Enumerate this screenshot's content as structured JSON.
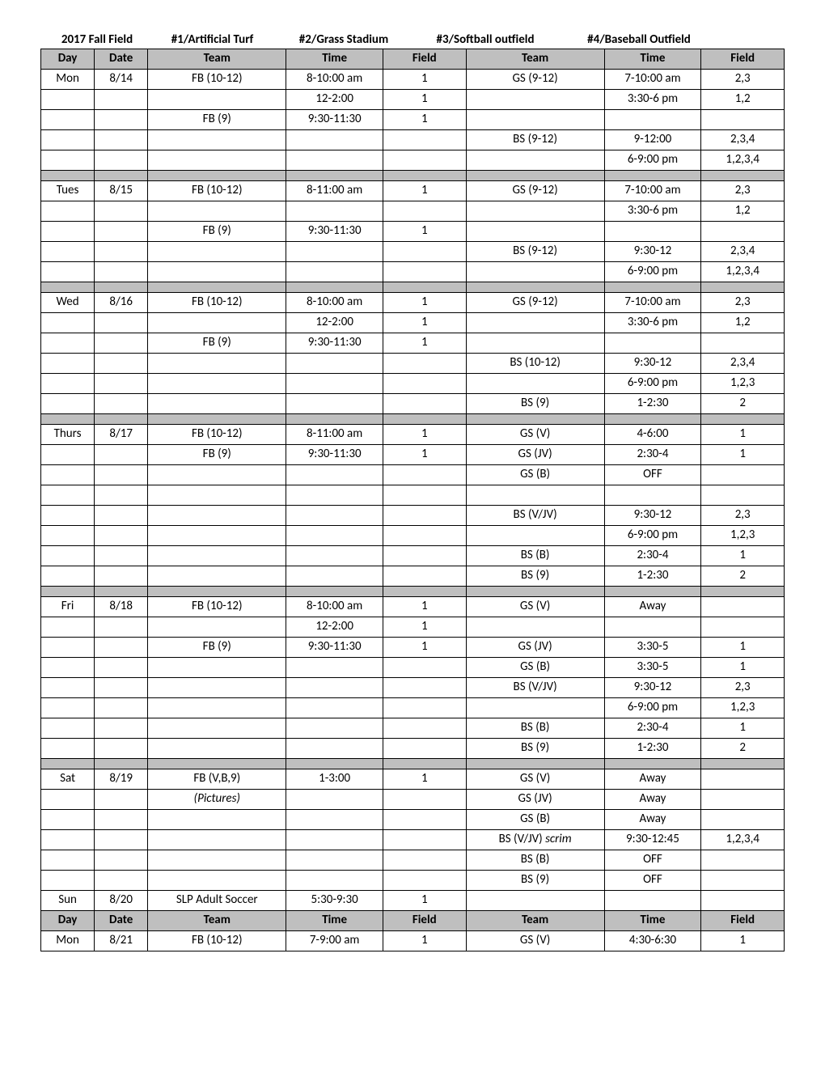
{
  "title": {
    "label1": "2017 Fall Field",
    "label2": "#1/Artificial Turf",
    "label3": "#2/Grass Stadium",
    "label4": "#3/Softball outfield",
    "label5": "#4/Baseball Outfield"
  },
  "headers": {
    "day": "Day",
    "date": "Date",
    "team": "Team",
    "time": "Time",
    "field": "Field"
  },
  "table": {
    "background_gray": "#bfbfbf",
    "border_color": "#000000",
    "font_family": "Calibri",
    "font_size": 15
  },
  "rows": [
    {
      "type": "header"
    },
    {
      "type": "data",
      "cells": [
        "Mon",
        "8/14",
        "FB (10-12)",
        "8-10:00 am",
        "1",
        "GS (9-12)",
        "7-10:00 am",
        "2,3"
      ]
    },
    {
      "type": "data",
      "cells": [
        "",
        "",
        "",
        "12-2:00",
        "1",
        "",
        "3:30-6 pm",
        "1,2"
      ]
    },
    {
      "type": "data",
      "cells": [
        "",
        "",
        "FB (9)",
        "9:30-11:30",
        "1",
        "",
        "",
        ""
      ]
    },
    {
      "type": "data",
      "cells": [
        "",
        "",
        "",
        "",
        "",
        "BS (9-12)",
        "9-12:00",
        "2,3,4"
      ]
    },
    {
      "type": "data",
      "cells": [
        "",
        "",
        "",
        "",
        "",
        "",
        "6-9:00 pm",
        "1,2,3,4"
      ]
    },
    {
      "type": "sep"
    },
    {
      "type": "data",
      "cells": [
        "Tues",
        "8/15",
        "FB (10-12)",
        "8-11:00 am",
        "1",
        "GS (9-12)",
        "7-10:00 am",
        "2,3"
      ]
    },
    {
      "type": "data",
      "cells": [
        "",
        "",
        "",
        "",
        "",
        "",
        "3:30-6 pm",
        "1,2"
      ]
    },
    {
      "type": "data",
      "cells": [
        "",
        "",
        "FB (9)",
        "9:30-11:30",
        "1",
        "",
        "",
        ""
      ]
    },
    {
      "type": "data",
      "cells": [
        "",
        "",
        "",
        "",
        "",
        "BS (9-12)",
        "9:30-12",
        "2,3,4"
      ]
    },
    {
      "type": "data",
      "cells": [
        "",
        "",
        "",
        "",
        "",
        "",
        "6-9:00 pm",
        "1,2,3,4"
      ]
    },
    {
      "type": "sep"
    },
    {
      "type": "data",
      "cells": [
        "Wed",
        "8/16",
        "FB (10-12)",
        "8-10:00 am",
        "1",
        "GS (9-12)",
        "7-10:00 am",
        "2,3"
      ]
    },
    {
      "type": "data",
      "cells": [
        "",
        "",
        "",
        "12-2:00",
        "1",
        "",
        "3:30-6 pm",
        "1,2"
      ]
    },
    {
      "type": "data",
      "cells": [
        "",
        "",
        "FB (9)",
        "9:30-11:30",
        "1",
        "",
        "",
        ""
      ]
    },
    {
      "type": "data",
      "cells": [
        "",
        "",
        "",
        "",
        "",
        "BS (10-12)",
        "9:30-12",
        "2,3,4"
      ]
    },
    {
      "type": "data",
      "cells": [
        "",
        "",
        "",
        "",
        "",
        "",
        "6-9:00 pm",
        "1,2,3"
      ]
    },
    {
      "type": "data",
      "cells": [
        "",
        "",
        "",
        "",
        "",
        "BS (9)",
        "1-2:30",
        "2"
      ]
    },
    {
      "type": "sep"
    },
    {
      "type": "data",
      "cells": [
        "Thurs",
        "8/17",
        "FB (10-12)",
        "8-11:00 am",
        "1",
        "GS (V)",
        "4-6:00",
        "1"
      ]
    },
    {
      "type": "data",
      "cells": [
        "",
        "",
        "FB (9)",
        "9:30-11:30",
        "1",
        "GS (JV)",
        "2:30-4",
        "1"
      ]
    },
    {
      "type": "data",
      "cells": [
        "",
        "",
        "",
        "",
        "",
        "GS (B)",
        "OFF",
        ""
      ]
    },
    {
      "type": "data",
      "cells": [
        "",
        "",
        "",
        "",
        "",
        "",
        "",
        ""
      ]
    },
    {
      "type": "data",
      "cells": [
        "",
        "",
        "",
        "",
        "",
        "BS (V/JV)",
        "9:30-12",
        "2,3"
      ]
    },
    {
      "type": "data",
      "cells": [
        "",
        "",
        "",
        "",
        "",
        "",
        "6-9:00 pm",
        "1,2,3"
      ]
    },
    {
      "type": "data",
      "cells": [
        "",
        "",
        "",
        "",
        "",
        "BS (B)",
        "2:30-4",
        "1"
      ]
    },
    {
      "type": "data",
      "cells": [
        "",
        "",
        "",
        "",
        "",
        "BS (9)",
        "1-2:30",
        "2"
      ]
    },
    {
      "type": "sep"
    },
    {
      "type": "data",
      "cells": [
        "Fri",
        "8/18",
        "FB (10-12)",
        "8-10:00 am",
        "1",
        "GS (V)",
        "Away",
        ""
      ]
    },
    {
      "type": "data",
      "cells": [
        "",
        "",
        "",
        "12-2:00",
        "1",
        "",
        "",
        ""
      ]
    },
    {
      "type": "data",
      "cells": [
        "",
        "",
        "FB (9)",
        "9:30-11:30",
        "1",
        "GS (JV)",
        "3:30-5",
        "1"
      ]
    },
    {
      "type": "data",
      "cells": [
        "",
        "",
        "",
        "",
        "",
        "GS (B)",
        "3:30-5",
        "1"
      ]
    },
    {
      "type": "data",
      "cells": [
        "",
        "",
        "",
        "",
        "",
        "BS (V/JV)",
        "9:30-12",
        "2,3"
      ]
    },
    {
      "type": "data",
      "cells": [
        "",
        "",
        "",
        "",
        "",
        "",
        "6-9:00 pm",
        "1,2,3"
      ]
    },
    {
      "type": "data",
      "cells": [
        "",
        "",
        "",
        "",
        "",
        "BS (B)",
        "2:30-4",
        "1"
      ]
    },
    {
      "type": "data",
      "cells": [
        "",
        "",
        "",
        "",
        "",
        "BS (9)",
        "1-2:30",
        "2"
      ]
    },
    {
      "type": "sep"
    },
    {
      "type": "data",
      "cells": [
        "Sat",
        "8/19",
        "FB (V,B,9)",
        "1-3:00",
        "1",
        "GS (V)",
        "Away",
        ""
      ]
    },
    {
      "type": "data",
      "cells": [
        "",
        "",
        "(Pictures)",
        "",
        "",
        "GS (JV)",
        "Away",
        ""
      ],
      "italic": [
        2
      ]
    },
    {
      "type": "data",
      "cells": [
        "",
        "",
        "",
        "",
        "",
        "GS (B)",
        "Away",
        ""
      ]
    },
    {
      "type": "data",
      "cells": [
        "",
        "",
        "",
        "",
        "",
        "BS (V/JV) scrim",
        "9:30-12:45",
        "1,2,3,4"
      ],
      "italicPart": 5
    },
    {
      "type": "data",
      "cells": [
        "",
        "",
        "",
        "",
        "",
        "BS (B)",
        "OFF",
        ""
      ]
    },
    {
      "type": "data",
      "cells": [
        "",
        "",
        "",
        "",
        "",
        "BS  (9)",
        "OFF",
        ""
      ]
    },
    {
      "type": "data",
      "cells": [
        "Sun",
        "8/20",
        "SLP Adult Soccer",
        "5:30-9:30",
        "1",
        "",
        "",
        ""
      ]
    },
    {
      "type": "header"
    },
    {
      "type": "data",
      "cells": [
        "Mon",
        "8/21",
        "FB (10-12)",
        "7-9:00 am",
        "1",
        "GS (V)",
        "4:30-6:30",
        "1"
      ]
    }
  ]
}
